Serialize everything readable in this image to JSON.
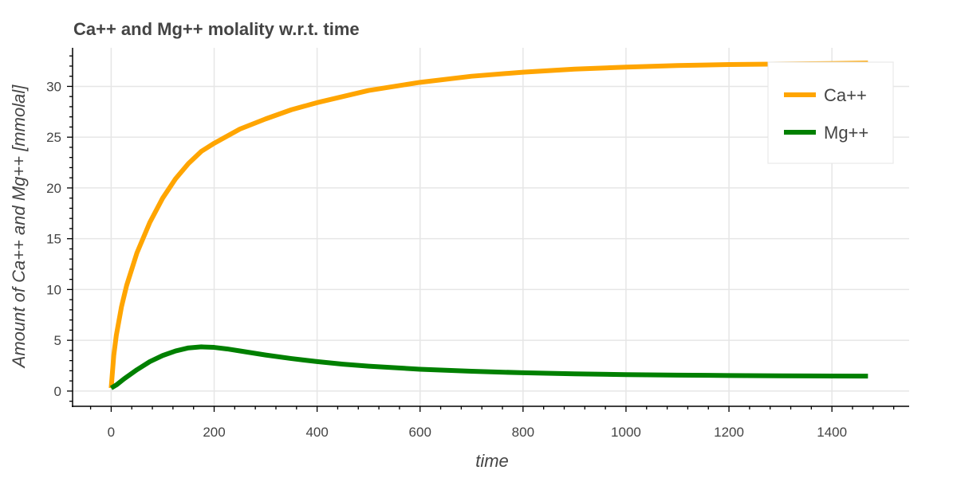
{
  "chart_data": {
    "type": "line",
    "title": "Ca++ and Mg++ molality w.r.t. time",
    "xlabel": "time",
    "ylabel": "Amount of Ca++ and Mg++ [mmolal]",
    "xlim": [
      -75,
      1550
    ],
    "ylim": [
      -1.5,
      33.8
    ],
    "xticks": [
      0,
      200,
      400,
      600,
      800,
      1000,
      1200,
      1400
    ],
    "yticks": [
      0,
      5,
      10,
      15,
      20,
      25,
      30
    ],
    "grid": true,
    "legend_position": "top-right",
    "series": [
      {
        "name": "Ca++",
        "color": "#FFA500",
        "x": [
          0,
          5,
          10,
          20,
          30,
          50,
          75,
          100,
          125,
          150,
          175,
          200,
          250,
          300,
          350,
          400,
          500,
          600,
          700,
          800,
          900,
          1000,
          1100,
          1200,
          1300,
          1400,
          1470
        ],
        "y": [
          0.3,
          3.5,
          5.5,
          8.3,
          10.4,
          13.6,
          16.6,
          19.0,
          20.9,
          22.4,
          23.6,
          24.4,
          25.8,
          26.8,
          27.7,
          28.4,
          29.6,
          30.4,
          31.0,
          31.4,
          31.7,
          31.9,
          32.05,
          32.15,
          32.2,
          32.25,
          32.3
        ]
      },
      {
        "name": "Mg++",
        "color": "#008000",
        "x": [
          0,
          10,
          25,
          50,
          75,
          100,
          125,
          150,
          175,
          200,
          225,
          250,
          300,
          350,
          400,
          450,
          500,
          600,
          700,
          800,
          900,
          1000,
          1100,
          1200,
          1300,
          1400,
          1470
        ],
        "y": [
          0.3,
          0.6,
          1.2,
          2.1,
          2.9,
          3.5,
          3.95,
          4.25,
          4.35,
          4.3,
          4.15,
          3.95,
          3.55,
          3.2,
          2.9,
          2.65,
          2.45,
          2.15,
          1.95,
          1.8,
          1.7,
          1.62,
          1.57,
          1.53,
          1.5,
          1.48,
          1.47
        ]
      }
    ]
  }
}
